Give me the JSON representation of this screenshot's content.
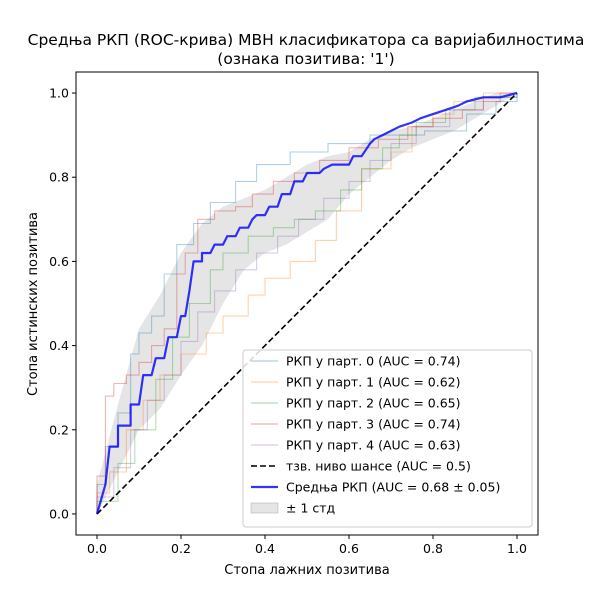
{
  "chart_data": {
    "type": "line",
    "title_lines": [
      "Средња РКП (ROC-крива) МВН класификатора са варијабилностима",
      "(ознака позитива: '1')"
    ],
    "xlabel": "Стопа лажних позитива",
    "ylabel": "Стопа истинских позитива",
    "xlim": [
      -0.05,
      1.05
    ],
    "ylim": [
      -0.05,
      1.05
    ],
    "xticks": [
      0.0,
      0.2,
      0.4,
      0.6,
      0.8,
      1.0
    ],
    "yticks": [
      0.0,
      0.2,
      0.4,
      0.6,
      0.8,
      1.0
    ],
    "xtick_labels": [
      "0.0",
      "0.2",
      "0.4",
      "0.6",
      "0.8",
      "1.0"
    ],
    "ytick_labels": [
      "0.0",
      "0.2",
      "0.4",
      "0.6",
      "0.8",
      "1.0"
    ],
    "grid": false,
    "legend_position": "lower-right",
    "folds": [
      {
        "name": "РКП у парт. 0 (AUC = 0.74)",
        "color": "#1f77b4",
        "points": [
          [
            0,
            0
          ],
          [
            0,
            0.07
          ],
          [
            0.02,
            0.07
          ],
          [
            0.02,
            0.16
          ],
          [
            0.05,
            0.16
          ],
          [
            0.05,
            0.24
          ],
          [
            0.08,
            0.24
          ],
          [
            0.08,
            0.38
          ],
          [
            0.1,
            0.38
          ],
          [
            0.1,
            0.43
          ],
          [
            0.13,
            0.43
          ],
          [
            0.13,
            0.47
          ],
          [
            0.16,
            0.47
          ],
          [
            0.16,
            0.57
          ],
          [
            0.19,
            0.57
          ],
          [
            0.19,
            0.64
          ],
          [
            0.23,
            0.64
          ],
          [
            0.23,
            0.69
          ],
          [
            0.27,
            0.69
          ],
          [
            0.27,
            0.74
          ],
          [
            0.33,
            0.74
          ],
          [
            0.33,
            0.79
          ],
          [
            0.38,
            0.79
          ],
          [
            0.38,
            0.83
          ],
          [
            0.46,
            0.83
          ],
          [
            0.46,
            0.86
          ],
          [
            0.55,
            0.86
          ],
          [
            0.55,
            0.88
          ],
          [
            0.65,
            0.88
          ],
          [
            0.65,
            0.9
          ],
          [
            0.78,
            0.9
          ],
          [
            0.78,
            0.91
          ],
          [
            0.88,
            0.91
          ],
          [
            0.88,
            0.95
          ],
          [
            0.95,
            0.95
          ],
          [
            0.95,
            0.98
          ],
          [
            1,
            0.98
          ],
          [
            1,
            1
          ]
        ]
      },
      {
        "name": "РКП у парт. 1 (AUC = 0.62)",
        "color": "#ff7f0e",
        "points": [
          [
            0,
            0
          ],
          [
            0,
            0.05
          ],
          [
            0.03,
            0.05
          ],
          [
            0.03,
            0.1
          ],
          [
            0.07,
            0.1
          ],
          [
            0.07,
            0.2
          ],
          [
            0.11,
            0.2
          ],
          [
            0.11,
            0.27
          ],
          [
            0.15,
            0.27
          ],
          [
            0.15,
            0.33
          ],
          [
            0.2,
            0.33
          ],
          [
            0.2,
            0.38
          ],
          [
            0.26,
            0.38
          ],
          [
            0.26,
            0.43
          ],
          [
            0.3,
            0.43
          ],
          [
            0.3,
            0.47
          ],
          [
            0.36,
            0.47
          ],
          [
            0.36,
            0.52
          ],
          [
            0.4,
            0.52
          ],
          [
            0.4,
            0.56
          ],
          [
            0.46,
            0.56
          ],
          [
            0.46,
            0.6
          ],
          [
            0.52,
            0.6
          ],
          [
            0.52,
            0.65
          ],
          [
            0.57,
            0.65
          ],
          [
            0.57,
            0.72
          ],
          [
            0.63,
            0.72
          ],
          [
            0.63,
            0.82
          ],
          [
            0.7,
            0.82
          ],
          [
            0.7,
            0.86
          ],
          [
            0.75,
            0.86
          ],
          [
            0.75,
            0.92
          ],
          [
            0.8,
            0.92
          ],
          [
            0.8,
            0.95
          ],
          [
            0.85,
            0.95
          ],
          [
            0.85,
            0.98
          ],
          [
            0.92,
            0.98
          ],
          [
            0.92,
            1
          ],
          [
            1,
            1
          ]
        ]
      },
      {
        "name": "РКП у парт. 2 (AUC = 0.65)",
        "color": "#2ca02c",
        "points": [
          [
            0,
            0
          ],
          [
            0,
            0.03
          ],
          [
            0.05,
            0.03
          ],
          [
            0.05,
            0.12
          ],
          [
            0.09,
            0.12
          ],
          [
            0.09,
            0.2
          ],
          [
            0.14,
            0.2
          ],
          [
            0.14,
            0.32
          ],
          [
            0.18,
            0.32
          ],
          [
            0.18,
            0.42
          ],
          [
            0.22,
            0.42
          ],
          [
            0.22,
            0.5
          ],
          [
            0.27,
            0.5
          ],
          [
            0.27,
            0.58
          ],
          [
            0.3,
            0.58
          ],
          [
            0.3,
            0.62
          ],
          [
            0.36,
            0.62
          ],
          [
            0.36,
            0.66
          ],
          [
            0.42,
            0.66
          ],
          [
            0.42,
            0.68
          ],
          [
            0.47,
            0.68
          ],
          [
            0.47,
            0.7
          ],
          [
            0.52,
            0.7
          ],
          [
            0.52,
            0.72
          ],
          [
            0.58,
            0.72
          ],
          [
            0.58,
            0.77
          ],
          [
            0.63,
            0.77
          ],
          [
            0.63,
            0.82
          ],
          [
            0.68,
            0.82
          ],
          [
            0.68,
            0.87
          ],
          [
            0.72,
            0.87
          ],
          [
            0.72,
            0.9
          ],
          [
            0.76,
            0.9
          ],
          [
            0.76,
            0.93
          ],
          [
            0.83,
            0.93
          ],
          [
            0.83,
            0.96
          ],
          [
            0.9,
            0.96
          ],
          [
            0.9,
            0.99
          ],
          [
            1,
            0.99
          ],
          [
            1,
            1
          ]
        ]
      },
      {
        "name": "РКП у парт. 3 (AUC = 0.74)",
        "color": "#d62728",
        "points": [
          [
            0,
            0
          ],
          [
            0,
            0.09
          ],
          [
            0.02,
            0.09
          ],
          [
            0.02,
            0.28
          ],
          [
            0.04,
            0.28
          ],
          [
            0.04,
            0.31
          ],
          [
            0.07,
            0.31
          ],
          [
            0.07,
            0.33
          ],
          [
            0.1,
            0.33
          ],
          [
            0.1,
            0.36
          ],
          [
            0.13,
            0.36
          ],
          [
            0.13,
            0.4
          ],
          [
            0.16,
            0.4
          ],
          [
            0.16,
            0.44
          ],
          [
            0.19,
            0.44
          ],
          [
            0.19,
            0.57
          ],
          [
            0.21,
            0.57
          ],
          [
            0.21,
            0.62
          ],
          [
            0.24,
            0.62
          ],
          [
            0.24,
            0.7
          ],
          [
            0.28,
            0.7
          ],
          [
            0.28,
            0.72
          ],
          [
            0.33,
            0.72
          ],
          [
            0.33,
            0.73
          ],
          [
            0.37,
            0.73
          ],
          [
            0.37,
            0.76
          ],
          [
            0.42,
            0.76
          ],
          [
            0.42,
            0.79
          ],
          [
            0.47,
            0.79
          ],
          [
            0.47,
            0.81
          ],
          [
            0.53,
            0.81
          ],
          [
            0.53,
            0.84
          ],
          [
            0.6,
            0.84
          ],
          [
            0.6,
            0.87
          ],
          [
            0.67,
            0.87
          ],
          [
            0.67,
            0.89
          ],
          [
            0.74,
            0.89
          ],
          [
            0.74,
            0.92
          ],
          [
            0.8,
            0.92
          ],
          [
            0.8,
            0.94
          ],
          [
            0.87,
            0.94
          ],
          [
            0.87,
            0.96
          ],
          [
            0.92,
            0.96
          ],
          [
            0.92,
            0.98
          ],
          [
            0.96,
            0.98
          ],
          [
            0.96,
            1
          ],
          [
            1,
            1
          ]
        ]
      },
      {
        "name": "РКП у парт. 4 (AUC = 0.63)",
        "color": "#9467bd",
        "points": [
          [
            0,
            0
          ],
          [
            0,
            0.04
          ],
          [
            0.04,
            0.04
          ],
          [
            0.04,
            0.11
          ],
          [
            0.08,
            0.11
          ],
          [
            0.08,
            0.2
          ],
          [
            0.12,
            0.2
          ],
          [
            0.12,
            0.27
          ],
          [
            0.16,
            0.27
          ],
          [
            0.16,
            0.33
          ],
          [
            0.2,
            0.33
          ],
          [
            0.2,
            0.41
          ],
          [
            0.24,
            0.41
          ],
          [
            0.24,
            0.48
          ],
          [
            0.28,
            0.48
          ],
          [
            0.28,
            0.53
          ],
          [
            0.33,
            0.53
          ],
          [
            0.33,
            0.58
          ],
          [
            0.38,
            0.58
          ],
          [
            0.38,
            0.62
          ],
          [
            0.43,
            0.62
          ],
          [
            0.43,
            0.66
          ],
          [
            0.48,
            0.66
          ],
          [
            0.48,
            0.7
          ],
          [
            0.54,
            0.7
          ],
          [
            0.54,
            0.75
          ],
          [
            0.6,
            0.75
          ],
          [
            0.6,
            0.79
          ],
          [
            0.65,
            0.79
          ],
          [
            0.65,
            0.84
          ],
          [
            0.7,
            0.84
          ],
          [
            0.7,
            0.88
          ],
          [
            0.76,
            0.88
          ],
          [
            0.76,
            0.92
          ],
          [
            0.84,
            0.92
          ],
          [
            0.84,
            0.96
          ],
          [
            0.92,
            0.96
          ],
          [
            0.92,
            0.99
          ],
          [
            1,
            0.99
          ],
          [
            1,
            1
          ]
        ]
      }
    ],
    "chance": {
      "name": "тзв. ниво шансе (AUC = 0.5)",
      "color": "#000000",
      "points": [
        [
          0,
          0
        ],
        [
          1,
          1
        ]
      ]
    },
    "mean": {
      "name": "Средња РКП (AUC = 0.68 ± 0.05)",
      "color": "#0000ff",
      "points": [
        [
          0,
          0
        ],
        [
          0.02,
          0.07
        ],
        [
          0.03,
          0.16
        ],
        [
          0.05,
          0.16
        ],
        [
          0.05,
          0.21
        ],
        [
          0.08,
          0.21
        ],
        [
          0.08,
          0.26
        ],
        [
          0.1,
          0.26
        ],
        [
          0.11,
          0.33
        ],
        [
          0.13,
          0.33
        ],
        [
          0.14,
          0.37
        ],
        [
          0.16,
          0.37
        ],
        [
          0.17,
          0.42
        ],
        [
          0.19,
          0.42
        ],
        [
          0.2,
          0.47
        ],
        [
          0.21,
          0.47
        ],
        [
          0.22,
          0.53
        ],
        [
          0.23,
          0.6
        ],
        [
          0.25,
          0.6
        ],
        [
          0.25,
          0.62
        ],
        [
          0.27,
          0.62
        ],
        [
          0.28,
          0.64
        ],
        [
          0.3,
          0.64
        ],
        [
          0.31,
          0.66
        ],
        [
          0.33,
          0.66
        ],
        [
          0.34,
          0.68
        ],
        [
          0.36,
          0.68
        ],
        [
          0.37,
          0.7
        ],
        [
          0.38,
          0.71
        ],
        [
          0.4,
          0.71
        ],
        [
          0.41,
          0.73
        ],
        [
          0.43,
          0.73
        ],
        [
          0.44,
          0.76
        ],
        [
          0.46,
          0.76
        ],
        [
          0.47,
          0.79
        ],
        [
          0.49,
          0.79
        ],
        [
          0.5,
          0.81
        ],
        [
          0.53,
          0.81
        ],
        [
          0.54,
          0.82
        ],
        [
          0.56,
          0.83
        ],
        [
          0.6,
          0.83
        ],
        [
          0.61,
          0.85
        ],
        [
          0.63,
          0.85
        ],
        [
          0.65,
          0.88
        ],
        [
          0.66,
          0.89
        ],
        [
          0.68,
          0.9
        ],
        [
          0.7,
          0.91
        ],
        [
          0.72,
          0.92
        ],
        [
          0.75,
          0.93
        ],
        [
          0.77,
          0.94
        ],
        [
          0.8,
          0.95
        ],
        [
          0.83,
          0.96
        ],
        [
          0.86,
          0.97
        ],
        [
          0.88,
          0.98
        ],
        [
          0.92,
          0.99
        ],
        [
          0.96,
          0.99
        ],
        [
          1,
          1
        ]
      ]
    },
    "std_band": {
      "name": "± 1 стд",
      "color": "#999999",
      "x": [
        0,
        0.05,
        0.1,
        0.15,
        0.2,
        0.25,
        0.3,
        0.35,
        0.4,
        0.45,
        0.5,
        0.55,
        0.6,
        0.65,
        0.7,
        0.75,
        0.8,
        0.85,
        0.9,
        0.95,
        1.0
      ],
      "upper": [
        0.07,
        0.26,
        0.44,
        0.52,
        0.62,
        0.69,
        0.73,
        0.75,
        0.77,
        0.8,
        0.83,
        0.85,
        0.86,
        0.89,
        0.91,
        0.92,
        0.94,
        0.96,
        0.98,
        1.0,
        1.0
      ],
      "lower": [
        0.0,
        0.1,
        0.2,
        0.25,
        0.33,
        0.4,
        0.5,
        0.58,
        0.62,
        0.64,
        0.67,
        0.7,
        0.76,
        0.8,
        0.84,
        0.87,
        0.89,
        0.91,
        0.94,
        0.97,
        1.0
      ]
    }
  }
}
